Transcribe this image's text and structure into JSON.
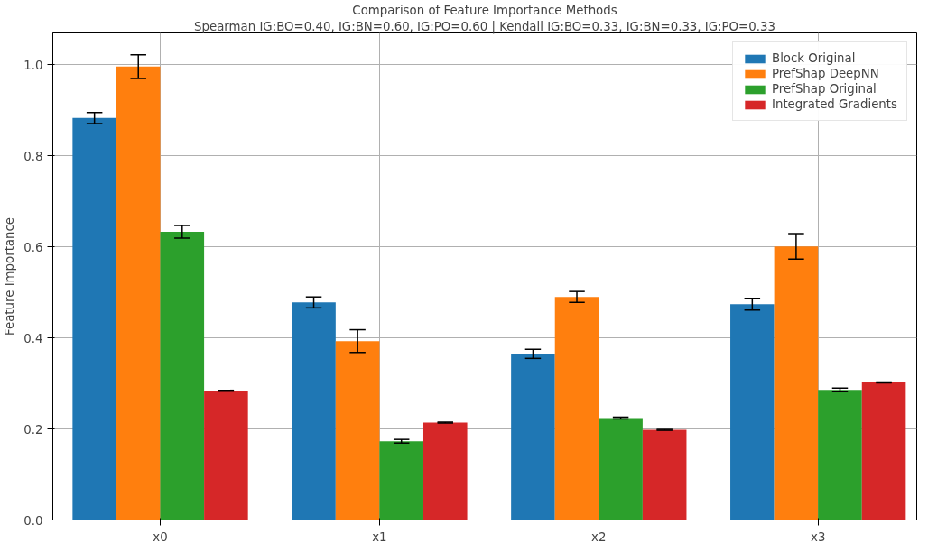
{
  "chart_data": {
    "type": "bar",
    "title": "Comparison of Feature Importance Methods",
    "subtitle": "Spearman IG:BO=0.40, IG:BN=0.60, IG:PO=0.60 | Kendall IG:BO=0.33, IG:BN=0.33, IG:PO=0.33",
    "ylabel": "Feature Importance",
    "categories": [
      "x0",
      "x1",
      "x2",
      "x3"
    ],
    "series": [
      {
        "name": "Block Original",
        "color": "#1f77b4",
        "values": [
          0.883,
          0.478,
          0.365,
          0.474
        ],
        "errors": [
          0.012,
          0.012,
          0.01,
          0.013
        ]
      },
      {
        "name": "PrefShap DeepNN",
        "color": "#ff7f0e",
        "values": [
          0.996,
          0.393,
          0.49,
          0.601
        ],
        "errors": [
          0.026,
          0.025,
          0.012,
          0.028
        ]
      },
      {
        "name": "PrefShap Original",
        "color": "#2ca02c",
        "values": [
          0.633,
          0.173,
          0.224,
          0.286
        ],
        "errors": [
          0.014,
          0.004,
          0.002,
          0.004
        ]
      },
      {
        "name": "Integrated Gradients",
        "color": "#d62728",
        "values": [
          0.284,
          0.214,
          0.198,
          0.302
        ],
        "errors": [
          0.001,
          0.001,
          0.001,
          0.001
        ]
      }
    ],
    "ylim": [
      0,
      1.07
    ],
    "yticks": [
      {
        "value": 0,
        "label": "0.0"
      },
      {
        "value": 0.2,
        "label": "0.2"
      },
      {
        "value": 0.4,
        "label": "0.4"
      },
      {
        "value": 0.6,
        "label": "0.6"
      },
      {
        "value": 0.8,
        "label": "0.8"
      },
      {
        "value": 1.0,
        "label": "1.0"
      }
    ],
    "grid": true,
    "legend": "top right"
  }
}
